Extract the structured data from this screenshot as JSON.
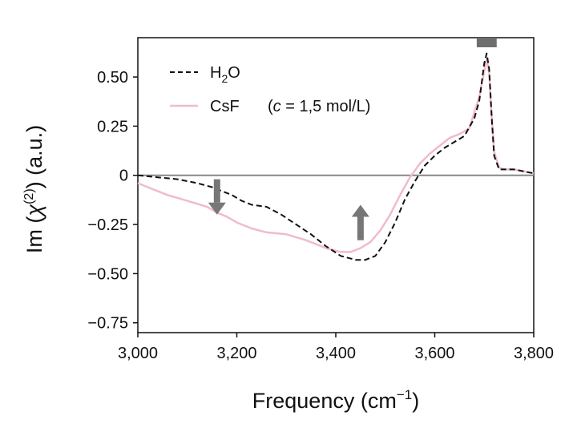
{
  "chart_data": {
    "type": "line",
    "xlabel_main": "Frequency (cm",
    "xlabel_sup": "−1",
    "xlabel_end": ")",
    "ylabel_pre": "Im (",
    "ylabel_chi": "χ",
    "ylabel_sup": "(2)",
    "ylabel_post": ") (a.u.)",
    "xlim": [
      3000,
      3800
    ],
    "ylim": [
      -0.8,
      0.7
    ],
    "x_ticks": [
      {
        "value": 3000,
        "label": "3,000"
      },
      {
        "value": 3200,
        "label": "3,200"
      },
      {
        "value": 3400,
        "label": "3,400"
      },
      {
        "value": 3600,
        "label": "3,600"
      },
      {
        "value": 3800,
        "label": "3,800"
      }
    ],
    "y_ticks": [
      {
        "value": 0.5,
        "label": "0.50"
      },
      {
        "value": 0.25,
        "label": "0.25"
      },
      {
        "value": 0,
        "label": "0"
      },
      {
        "value": -0.25,
        "label": "−0.25"
      },
      {
        "value": -0.5,
        "label": "−0.50"
      },
      {
        "value": -0.75,
        "label": "−0.75"
      }
    ],
    "legend": [
      {
        "label_main": "H",
        "label_sub": "2",
        "label_end": "O"
      },
      {
        "label_main": "CsF",
        "label_cond_open": "(",
        "label_c": "c",
        "label_cond_rest": " = 1,5 mol/L)"
      }
    ],
    "series": [
      {
        "style": "dashed",
        "color": "#111111",
        "x": [
          3000,
          3040,
          3080,
          3120,
          3150,
          3170,
          3190,
          3210,
          3230,
          3260,
          3290,
          3320,
          3350,
          3380,
          3410,
          3440,
          3460,
          3480,
          3500,
          3520,
          3540,
          3560,
          3580,
          3600,
          3620,
          3640,
          3660,
          3680,
          3690,
          3700,
          3705,
          3710,
          3715,
          3720,
          3730,
          3740,
          3760,
          3780,
          3800
        ],
        "y": [
          0.0,
          -0.01,
          -0.02,
          -0.04,
          -0.06,
          -0.08,
          -0.1,
          -0.13,
          -0.15,
          -0.16,
          -0.2,
          -0.25,
          -0.3,
          -0.36,
          -0.41,
          -0.43,
          -0.43,
          -0.41,
          -0.34,
          -0.24,
          -0.12,
          -0.03,
          0.05,
          0.1,
          0.14,
          0.17,
          0.2,
          0.29,
          0.38,
          0.57,
          0.62,
          0.54,
          0.3,
          0.1,
          0.03,
          0.03,
          0.03,
          0.02,
          0.01
        ]
      },
      {
        "style": "solid",
        "color": "#f0bcc8",
        "x": [
          3000,
          3020,
          3060,
          3100,
          3140,
          3160,
          3180,
          3200,
          3230,
          3260,
          3300,
          3340,
          3380,
          3410,
          3430,
          3450,
          3470,
          3490,
          3510,
          3530,
          3550,
          3570,
          3590,
          3610,
          3630,
          3650,
          3670,
          3690,
          3700,
          3705,
          3710,
          3715,
          3720,
          3730,
          3740,
          3760,
          3780,
          3800
        ],
        "y": [
          -0.04,
          -0.06,
          -0.1,
          -0.13,
          -0.16,
          -0.19,
          -0.21,
          -0.24,
          -0.27,
          -0.29,
          -0.3,
          -0.33,
          -0.37,
          -0.39,
          -0.39,
          -0.37,
          -0.34,
          -0.28,
          -0.2,
          -0.1,
          -0.01,
          0.06,
          0.11,
          0.15,
          0.19,
          0.21,
          0.24,
          0.4,
          0.53,
          0.59,
          0.52,
          0.3,
          0.12,
          0.04,
          0.03,
          0.03,
          0.02,
          0.01
        ]
      }
    ],
    "zero_line": 0,
    "arrows": [
      {
        "x": 3160,
        "y_from": -0.02,
        "y_to": -0.2,
        "direction": "down"
      },
      {
        "x": 3450,
        "y_from": -0.33,
        "y_to": -0.15,
        "direction": "up"
      }
    ],
    "highlight_band": {
      "x_from": 3680,
      "x_to": 3730
    },
    "colors": {
      "axis": "#111111",
      "zero_line": "#888888",
      "arrow": "#777777",
      "band": "#6e6e6e"
    }
  }
}
